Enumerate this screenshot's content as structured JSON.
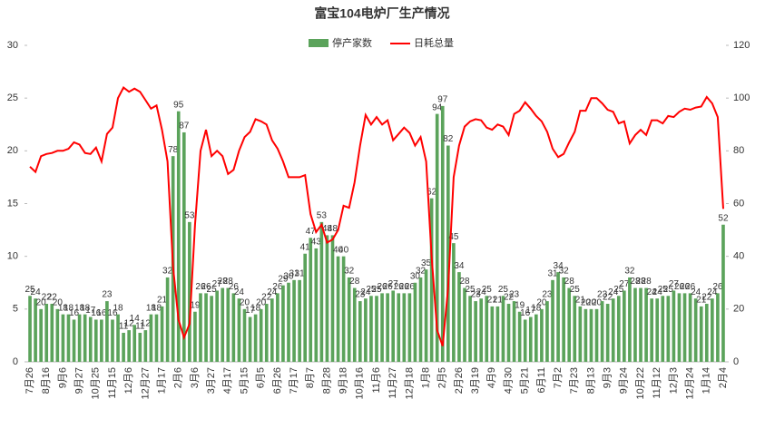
{
  "chart_data": {
    "type": "bar-line",
    "title": "富宝104电炉厂生产情况",
    "categories": [
      "7月26",
      null,
      null,
      "8月16",
      null,
      null,
      "9月6",
      null,
      null,
      "9月27",
      null,
      null,
      "10月25",
      null,
      null,
      "11月15",
      null,
      null,
      "12月6",
      null,
      null,
      "12月27",
      null,
      null,
      "1月17",
      null,
      null,
      "2月6",
      null,
      null,
      "3月6",
      null,
      null,
      "3月27",
      null,
      null,
      "4月17",
      null,
      null,
      "5月15",
      null,
      null,
      "6月5",
      null,
      null,
      "6月26",
      null,
      null,
      "7月17",
      null,
      null,
      "8月7",
      null,
      null,
      "8月28",
      null,
      null,
      "9月18",
      null,
      null,
      "10月16",
      null,
      null,
      "11月6",
      null,
      null,
      "11月27",
      null,
      null,
      "12月18",
      null,
      null,
      "1月8",
      null,
      null,
      "2月5",
      null,
      null,
      "2月26",
      null,
      null,
      "3月19",
      null,
      null,
      "4月9",
      null,
      null,
      "4月30",
      null,
      null,
      "5月21",
      null,
      null,
      "6月11",
      null,
      null,
      "7月2",
      null,
      null,
      "7月23",
      null,
      null,
      "8月13",
      null,
      null,
      "9月3",
      null,
      null,
      "9月24",
      null,
      null,
      "10月22",
      null,
      null,
      "11月12",
      null,
      null,
      "12月3",
      null,
      null,
      "12月24",
      null,
      null,
      "1月14",
      null,
      null,
      "2月4"
    ],
    "series": [
      {
        "name": "停产家数",
        "color": "#5ba35b",
        "axis": "y2",
        "values": [
          25,
          24,
          20,
          22,
          22,
          20,
          18,
          18,
          16,
          18,
          18,
          17,
          16,
          16,
          23,
          16,
          18,
          11,
          12,
          14,
          11,
          12,
          18,
          18,
          21,
          32,
          78,
          95,
          87,
          53,
          19,
          26,
          26,
          25,
          27,
          28,
          28,
          26,
          24,
          20,
          17,
          18,
          20,
          22,
          24,
          26,
          29,
          30,
          31,
          31,
          41,
          47,
          43,
          53,
          48,
          48,
          40,
          40,
          32,
          28,
          23,
          24,
          25,
          25,
          26,
          26,
          27,
          26,
          26,
          26,
          30,
          32,
          35,
          62,
          94,
          97,
          82,
          45,
          34,
          28,
          25,
          23,
          24,
          25,
          21,
          21,
          25,
          22,
          23,
          19,
          16,
          17,
          18,
          20,
          23,
          31,
          34,
          32,
          28,
          25,
          21,
          20,
          20,
          20,
          23,
          22,
          24,
          25,
          27,
          32,
          28,
          28,
          28,
          24,
          24,
          25,
          25,
          27,
          26,
          26,
          26,
          24,
          21,
          22,
          24,
          26,
          52
        ]
      },
      {
        "name": "日耗总量",
        "color": "#ff0000",
        "axis": "y",
        "values": [
          18.5,
          18,
          19.5,
          19.7,
          19.8,
          20,
          20,
          20.2,
          20.8,
          20.6,
          19.8,
          19.7,
          20.3,
          19,
          21.6,
          22.2,
          25,
          26,
          25.6,
          25.9,
          25.6,
          24.8,
          24,
          24.3,
          22,
          19,
          9,
          4,
          2.3,
          3.6,
          13,
          20,
          22,
          19.5,
          20,
          19.5,
          17.8,
          18.2,
          20,
          21.3,
          21.8,
          23,
          22.8,
          22.5,
          21,
          20.2,
          19,
          17.5,
          17.5,
          17.5,
          17.7,
          14,
          12.3,
          13,
          11.3,
          11.6,
          12.5,
          14.8,
          14.6,
          17,
          20.5,
          23.4,
          22.5,
          23.2,
          22.5,
          22.9,
          21,
          21.6,
          22.2,
          21.7,
          20.5,
          21.3,
          19,
          10,
          3,
          1.5,
          7,
          17.5,
          20.5,
          22.3,
          22.8,
          23,
          22.9,
          22.2,
          22,
          22.5,
          22.3,
          21.5,
          23.5,
          23.8,
          24.6,
          24,
          23.3,
          22.8,
          21.8,
          20.2,
          19.4,
          19.7,
          20.8,
          21.8,
          23.8,
          23.8,
          25,
          25,
          24.5,
          23.9,
          23.7,
          22.6,
          22.8,
          20.7,
          21.5,
          22,
          21.5,
          22.9,
          22.9,
          22.6,
          23.3,
          23.2,
          23.7,
          24,
          23.9,
          24.1,
          24.2,
          25.1,
          24.5,
          23.2,
          14.5
        ]
      }
    ],
    "ylim": [
      0,
      30
    ],
    "yticks": [
      0,
      5,
      10,
      15,
      20,
      25,
      30
    ],
    "y2lim": [
      0,
      120
    ],
    "y2ticks": [
      0,
      20,
      40,
      60,
      80,
      100,
      120
    ],
    "legend": "top"
  }
}
